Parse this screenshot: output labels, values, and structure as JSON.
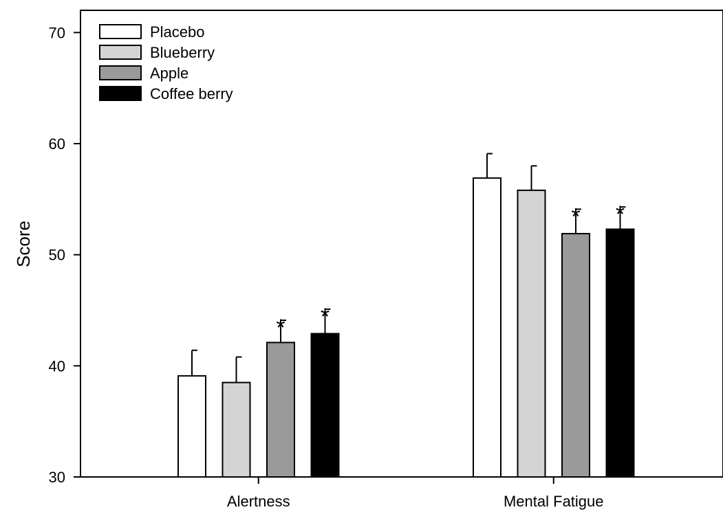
{
  "chart_data": {
    "type": "bar",
    "ylabel": "Score",
    "xlabel": "",
    "ylim": [
      30,
      72
    ],
    "yticks": [
      30,
      40,
      50,
      60,
      70
    ],
    "categories": [
      "Alertness",
      "Mental Fatigue"
    ],
    "series": [
      {
        "name": "Placebo",
        "values": [
          39.1,
          56.9
        ],
        "errors": [
          2.3,
          2.2
        ],
        "significant": [
          false,
          false
        ],
        "color": "#ffffff"
      },
      {
        "name": "Blueberry",
        "values": [
          38.5,
          55.8
        ],
        "errors": [
          2.3,
          2.2
        ],
        "significant": [
          false,
          false
        ],
        "color": "#d4d4d4"
      },
      {
        "name": "Apple",
        "values": [
          42.1,
          51.9
        ],
        "errors": [
          2.0,
          2.2
        ],
        "significant": [
          true,
          true
        ],
        "color": "#9a9a9a"
      },
      {
        "name": "Coffee berry",
        "values": [
          42.9,
          52.3
        ],
        "errors": [
          2.2,
          2.0
        ],
        "significant": [
          true,
          true
        ],
        "color": "#000000"
      }
    ],
    "significance_marker": "*",
    "legend_position": "top-left",
    "grid": false
  }
}
